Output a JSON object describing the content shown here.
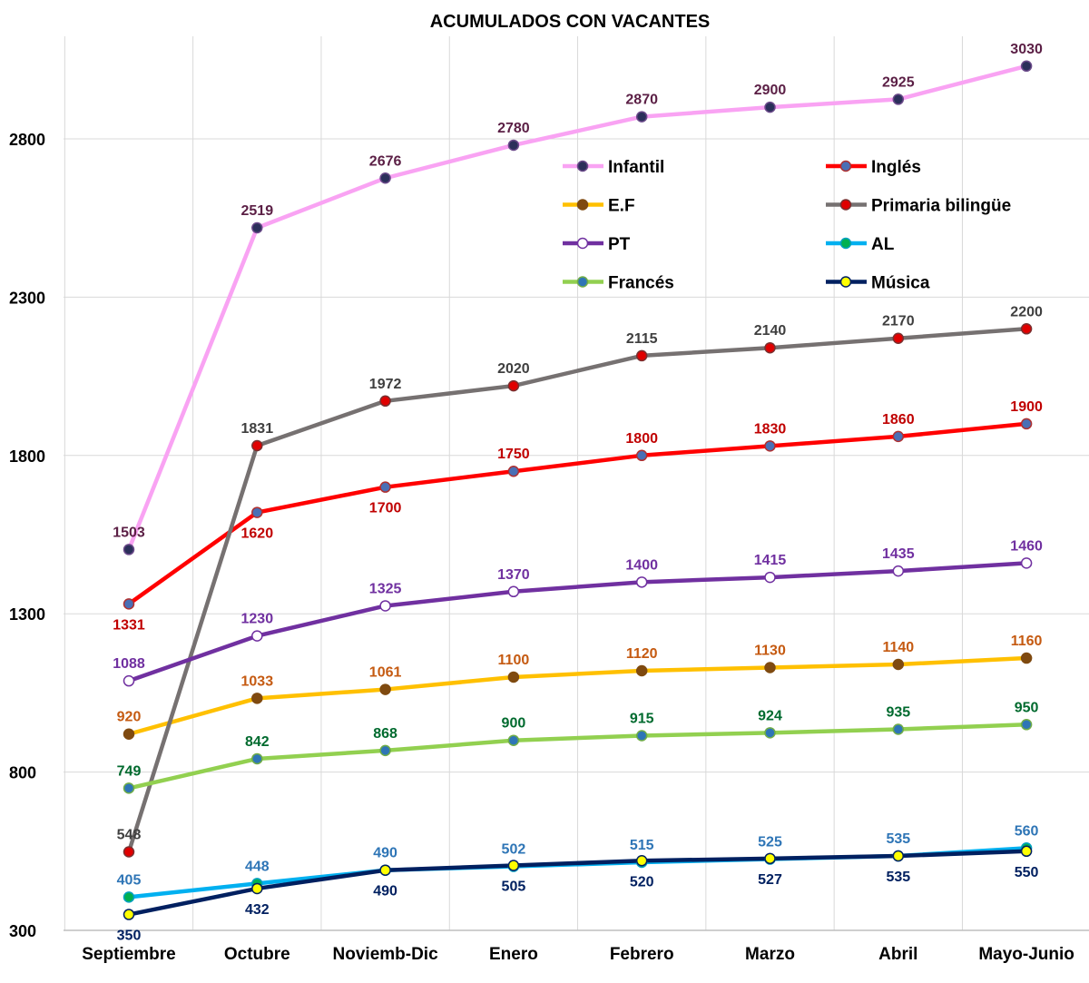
{
  "chart_data": {
    "type": "line",
    "title": "ACUMULADOS CON VACANTES",
    "xlabel": "",
    "ylabel": "",
    "categories": [
      "Septiembre",
      "Octubre",
      "Noviemb-Dic",
      "Enero",
      "Febrero",
      "Marzo",
      "Abril",
      "Mayo-Junio"
    ],
    "ylim": [
      300,
      3150
    ],
    "yticks": [
      300,
      800,
      1300,
      1800,
      2300,
      2800
    ],
    "grid": "vertical-and-horizontal",
    "legend_position": "inside-top-right",
    "series": [
      {
        "name": "Infantil",
        "line_color": "#f9a3f3",
        "marker_color": "#2b2f5a",
        "marker_border": "#6b4a8a",
        "label_color": "#5b1f45",
        "label_pos": [
          "above",
          "above",
          "above",
          "above",
          "above",
          "above",
          "above",
          "above"
        ],
        "values": [
          1503,
          2519,
          2676,
          2780,
          2870,
          2900,
          2925,
          3030
        ]
      },
      {
        "name": "Inglés",
        "line_color": "#ff0000",
        "marker_color": "#4a6fb5",
        "marker_border": "#b03030",
        "label_color": "#c00000",
        "label_pos": [
          "below",
          "below",
          "below",
          "above",
          "above",
          "above",
          "above",
          "above"
        ],
        "values": [
          1331,
          1620,
          1700,
          1750,
          1800,
          1830,
          1860,
          1900
        ]
      },
      {
        "name": "E.F",
        "line_color": "#ffc000",
        "marker_color": "#7f4a10",
        "marker_border": "#7f4a10",
        "label_color": "#c55a11",
        "label_pos": [
          "above",
          "above",
          "above",
          "above",
          "above",
          "above",
          "above",
          "above"
        ],
        "values": [
          920,
          1033,
          1061,
          1100,
          1120,
          1130,
          1140,
          1160
        ]
      },
      {
        "name": "Primaria bilingüe",
        "line_color": "#767171",
        "marker_color": "#e00000",
        "marker_border": "#7a3030",
        "label_color": "#3f3f3f",
        "label_pos": [
          "above",
          "above",
          "above",
          "above",
          "above",
          "above",
          "above",
          "above"
        ],
        "values": [
          548,
          1831,
          1972,
          2020,
          2115,
          2140,
          2170,
          2200
        ]
      },
      {
        "name": "PT",
        "line_color": "#7030a0",
        "marker_color": "#ffffff",
        "marker_border": "#7030a0",
        "label_color": "#7030a0",
        "label_pos": [
          "above",
          "above",
          "above",
          "above",
          "above",
          "above",
          "above",
          "above"
        ],
        "values": [
          1088,
          1230,
          1325,
          1370,
          1400,
          1415,
          1435,
          1460
        ]
      },
      {
        "name": "AL",
        "line_color": "#00b0f0",
        "marker_color": "#00b050",
        "marker_border": "#00a0c0",
        "label_color": "#2e75b6",
        "label_pos": [
          "above",
          "above",
          "above",
          "above",
          "above",
          "above",
          "above",
          "above"
        ],
        "values": [
          405,
          448,
          490,
          502,
          515,
          525,
          535,
          560
        ]
      },
      {
        "name": "Francés",
        "line_color": "#92d050",
        "marker_color": "#2e75b6",
        "marker_border": "#70ad47",
        "label_color": "#006a2e",
        "label_pos": [
          "above",
          "above",
          "above",
          "above",
          "above",
          "above",
          "above",
          "above"
        ],
        "values": [
          749,
          842,
          868,
          900,
          915,
          924,
          935,
          950
        ]
      },
      {
        "name": "Música",
        "line_color": "#002060",
        "marker_color": "#ffff00",
        "marker_border": "#002060",
        "label_color": "#002060",
        "label_pos": [
          "below",
          "below",
          "below",
          "below",
          "below",
          "below",
          "below",
          "below"
        ],
        "values": [
          350,
          432,
          490,
          505,
          520,
          527,
          535,
          550
        ]
      }
    ]
  }
}
